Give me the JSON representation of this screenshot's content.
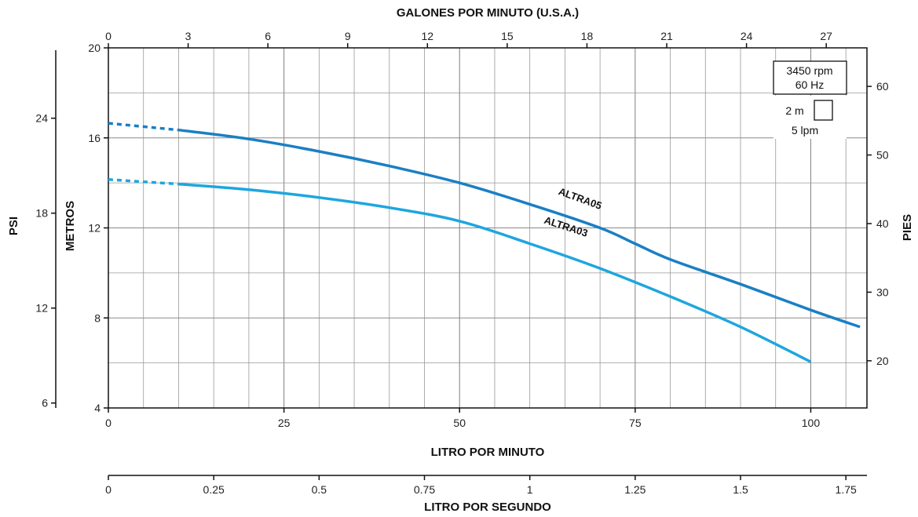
{
  "chart_data": {
    "type": "line",
    "x_axis_bottom": {
      "label": "LITRO POR MINUTO",
      "range": [
        0,
        108
      ],
      "ticks": [
        0,
        25,
        50,
        75,
        100
      ],
      "tick_labels": [
        "0",
        "25",
        "50",
        "75",
        "100"
      ]
    },
    "x_axis_top": {
      "label": "GALONES POR MINUTO (U.S.A.)",
      "ticks": [
        0,
        3,
        6,
        9,
        12,
        15,
        18,
        21,
        24,
        27
      ],
      "tick_labels": [
        "0",
        "3",
        "6",
        "9",
        "12",
        "15",
        "18",
        "21",
        "24",
        "27"
      ]
    },
    "x_axis_secondary_bottom": {
      "label": "LITRO POR SEGUNDO",
      "ticks": [
        0,
        0.25,
        0.5,
        0.75,
        1,
        1.25,
        1.5,
        1.75
      ],
      "tick_labels": [
        "0",
        "0.25",
        "0.5",
        "0.75",
        "1",
        "1.25",
        "1.5",
        "1.75"
      ]
    },
    "y_axis_left": {
      "label": "METROS",
      "range": [
        4,
        20
      ],
      "ticks": [
        4,
        8,
        12,
        16,
        20
      ],
      "tick_labels": [
        "4",
        "8",
        "12",
        "16",
        "20"
      ]
    },
    "y_axis_far_left": {
      "label": "PSI",
      "ticks": [
        6,
        12,
        18,
        24
      ],
      "tick_labels": [
        "6",
        "12",
        "18",
        "24"
      ]
    },
    "y_axis_right": {
      "label": "PIES",
      "ticks": [
        20,
        30,
        40,
        50,
        60
      ],
      "tick_labels": [
        "20",
        "30",
        "40",
        "50",
        "60"
      ]
    },
    "grid": true,
    "legend": {
      "speed": "3450 rpm",
      "freq": "60 Hz",
      "scale_v": "2 m",
      "scale_h": "5 lpm"
    },
    "series": [
      {
        "name": "ALTRA05",
        "color": "#1a7fc4",
        "dashed_until": 10,
        "x": [
          0,
          10,
          20,
          30,
          40,
          50,
          60,
          70,
          75,
          80,
          90,
          100,
          107
        ],
        "y": [
          16.65,
          16.35,
          15.95,
          15.4,
          14.75,
          14.0,
          13.05,
          12.0,
          11.3,
          10.6,
          9.5,
          8.35,
          7.6
        ]
      },
      {
        "name": "ALTRA03",
        "color": "#1ea6de",
        "dashed_until": 10,
        "x": [
          0,
          10,
          20,
          30,
          40,
          50,
          60,
          70,
          80,
          90,
          100
        ],
        "y": [
          14.15,
          13.95,
          13.7,
          13.35,
          12.9,
          12.3,
          11.3,
          10.2,
          8.95,
          7.6,
          6.05
        ]
      }
    ]
  }
}
